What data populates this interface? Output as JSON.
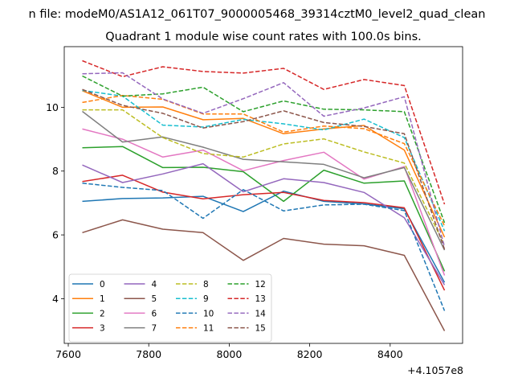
{
  "figure": {
    "suptitle": "n file: modeM0/AS1A12_061T07_9000005468_39314cztM0_level2_quad_clean",
    "title": "Quadrant 1 module wise count rates with 100.0s bins.",
    "x_offset_label": "+4.1057e8"
  },
  "chart_data": {
    "type": "line",
    "title": "Quadrant 1 module wise count rates with 100.0s bins.",
    "xlabel": "",
    "ylabel": "",
    "x_offset": 410570000,
    "x": [
      7635,
      7735,
      7835,
      7935,
      8035,
      8135,
      8235,
      8335,
      8435,
      8535
    ],
    "xlim": [
      7590,
      8580
    ],
    "ylim": [
      2.6,
      11.9
    ],
    "xticks": [
      7600,
      7800,
      8000,
      8200,
      8400
    ],
    "yticks": [
      4,
      6,
      8,
      10
    ],
    "grid": false,
    "legend": {
      "placement": "lower-left",
      "columns": 4
    },
    "series": [
      {
        "name": "0",
        "color": "#1f77b4",
        "dash": "solid",
        "values": [
          7.05,
          7.14,
          7.16,
          7.21,
          6.73,
          7.37,
          7.05,
          6.97,
          6.82,
          4.51
        ]
      },
      {
        "name": "1",
        "color": "#ff7f0e",
        "dash": "solid",
        "values": [
          10.52,
          10.0,
          10.01,
          9.61,
          9.65,
          9.17,
          9.32,
          9.43,
          8.66,
          5.93
        ]
      },
      {
        "name": "2",
        "color": "#2ca02c",
        "dash": "solid",
        "values": [
          8.73,
          8.77,
          8.11,
          8.12,
          7.98,
          7.05,
          8.03,
          7.62,
          7.69,
          4.86
        ]
      },
      {
        "name": "3",
        "color": "#d62728",
        "dash": "solid",
        "values": [
          7.67,
          7.87,
          7.34,
          7.13,
          7.26,
          7.33,
          7.08,
          7.01,
          6.85,
          4.26
        ]
      },
      {
        "name": "4",
        "color": "#9467bd",
        "dash": "solid",
        "values": [
          8.19,
          7.64,
          7.91,
          8.23,
          7.35,
          7.76,
          7.64,
          7.33,
          6.54,
          4.43
        ]
      },
      {
        "name": "5",
        "color": "#8c564b",
        "dash": "solid",
        "values": [
          6.07,
          6.47,
          6.18,
          6.07,
          5.2,
          5.89,
          5.71,
          5.66,
          5.36,
          2.99
        ]
      },
      {
        "name": "6",
        "color": "#e377c2",
        "dash": "solid",
        "values": [
          9.32,
          9.0,
          8.44,
          8.66,
          8.01,
          8.33,
          8.59,
          7.75,
          8.14,
          4.73
        ]
      },
      {
        "name": "7",
        "color": "#7f7f7f",
        "dash": "solid",
        "values": [
          9.87,
          8.91,
          9.07,
          8.75,
          8.37,
          8.29,
          8.21,
          7.79,
          8.11,
          5.52
        ]
      },
      {
        "name": "8",
        "color": "#bcbd22",
        "dash": "dashed",
        "values": [
          9.92,
          9.92,
          9.05,
          8.55,
          8.44,
          8.85,
          9.01,
          8.6,
          8.25,
          5.68
        ]
      },
      {
        "name": "9",
        "color": "#17becf",
        "dash": "dashed",
        "values": [
          10.53,
          10.35,
          9.44,
          9.38,
          9.62,
          9.48,
          9.29,
          9.63,
          9.05,
          6.12
        ]
      },
      {
        "name": "10",
        "color": "#1f77b4",
        "dash": "dashed",
        "values": [
          7.62,
          7.49,
          7.39,
          6.52,
          7.42,
          6.75,
          6.94,
          6.96,
          6.76,
          3.62
        ]
      },
      {
        "name": "11",
        "color": "#ff7f0e",
        "dash": "dashed",
        "values": [
          10.15,
          10.37,
          10.25,
          9.79,
          9.79,
          9.22,
          9.41,
          9.33,
          8.86,
          6.28
        ]
      },
      {
        "name": "12",
        "color": "#2ca02c",
        "dash": "dashed",
        "values": [
          10.98,
          10.35,
          10.42,
          10.63,
          9.86,
          10.2,
          9.94,
          9.92,
          9.86,
          6.38
        ]
      },
      {
        "name": "13",
        "color": "#d62728",
        "dash": "dashed",
        "values": [
          11.46,
          10.96,
          11.27,
          11.12,
          11.07,
          11.22,
          10.56,
          10.87,
          10.68,
          6.96
        ]
      },
      {
        "name": "14",
        "color": "#9467bd",
        "dash": "dashed",
        "values": [
          11.05,
          11.08,
          10.26,
          9.81,
          10.27,
          10.77,
          9.72,
          9.98,
          10.33,
          5.62
        ]
      },
      {
        "name": "15",
        "color": "#8c564b",
        "dash": "dashed",
        "values": [
          10.56,
          10.06,
          9.81,
          9.35,
          9.55,
          9.89,
          9.52,
          9.4,
          9.17,
          5.55
        ]
      }
    ]
  }
}
